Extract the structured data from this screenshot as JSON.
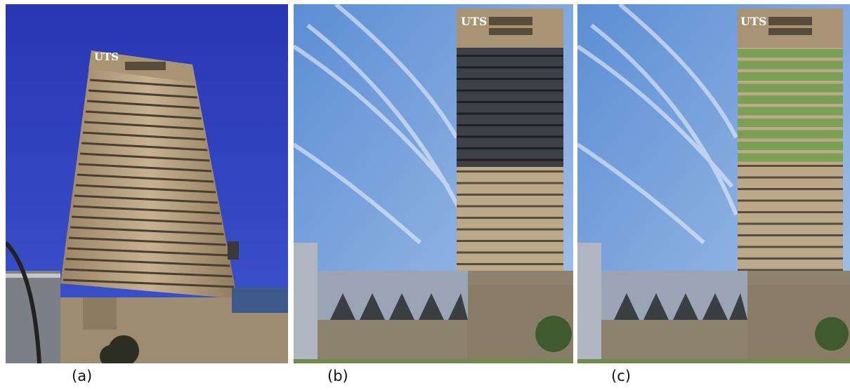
{
  "panels": [
    {
      "id": "a",
      "caption": "(a)",
      "sign_text": "UTS"
    },
    {
      "id": "b",
      "caption": "(b)",
      "sign_text": "UTS"
    },
    {
      "id": "c",
      "caption": "(c)",
      "sign_text": "UTS"
    }
  ],
  "colors": {
    "sky_a": "#2f3fbf",
    "sky_bc": "#6a98d8",
    "concrete": "#b8a487",
    "concrete_dark": "#6c5d4a",
    "glass_dark": "#3c3e44",
    "green_band": "#7aa054"
  }
}
